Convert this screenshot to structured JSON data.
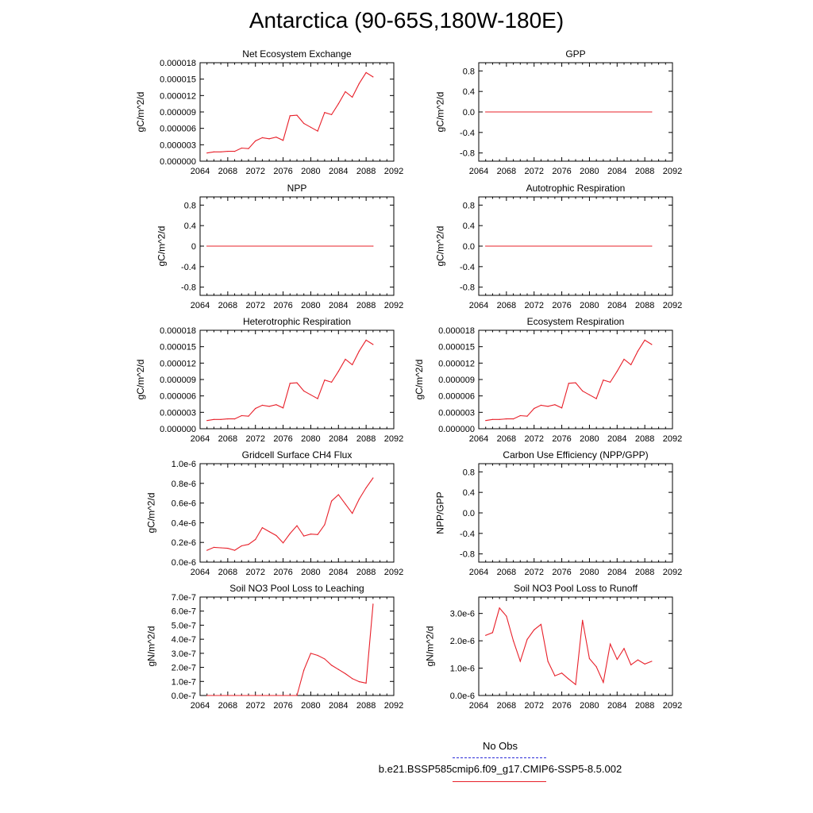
{
  "title": "Antarctica (90-65S,180W-180E)",
  "legend": {
    "obs_label": "No Obs",
    "obs_color": "#2b2bd8",
    "model_label": "b.e21.BSSP585cmip6.f09_g17.CMIP6-SSP5-8.5.002",
    "model_color": "#e8202a"
  },
  "chart_data": [
    {
      "type": "line",
      "title": "Net Ecosystem Exchange",
      "ylabel": "gC/m^2/d",
      "xlim": [
        2064,
        2092
      ],
      "ylim": [
        0,
        1.8e-05
      ],
      "xticks": [
        "2064",
        "2068",
        "2072",
        "2076",
        "2080",
        "2084",
        "2088",
        "2092"
      ],
      "yticks": [
        "0.000000",
        "0.000003",
        "0.000006",
        "0.000009",
        "0.000012",
        "0.000015",
        "0.000018"
      ],
      "x": [
        2065,
        2066,
        2067,
        2068,
        2069,
        2070,
        2071,
        2072,
        2073,
        2074,
        2075,
        2076,
        2077,
        2078,
        2079,
        2080,
        2081,
        2082,
        2083,
        2084,
        2085,
        2086,
        2087,
        2088,
        2089
      ],
      "values": [
        1.5e-06,
        1.7e-06,
        1.7e-06,
        1.8e-06,
        1.8e-06,
        2.4e-06,
        2.3e-06,
        3.7e-06,
        4.3e-06,
        4.1e-06,
        4.4e-06,
        3.8e-06,
        8.3e-06,
        8.4e-06,
        6.9e-06,
        6.2e-06,
        5.5e-06,
        8.9e-06,
        8.5e-06,
        1.05e-05,
        1.27e-05,
        1.17e-05,
        1.42e-05,
        1.62e-05,
        1.54e-05
      ]
    },
    {
      "type": "line",
      "title": "GPP",
      "ylabel": "gC/m^2/d",
      "xlim": [
        2064,
        2092
      ],
      "ylim": [
        -0.96,
        0.96
      ],
      "xticks": [
        "2064",
        "2068",
        "2072",
        "2076",
        "2080",
        "2084",
        "2088",
        "2092"
      ],
      "yticks": [
        "-0.8",
        "-0.4",
        "0.0",
        "0.4",
        "0.8"
      ],
      "x": [
        2065,
        2089
      ],
      "values": [
        0,
        0
      ]
    },
    {
      "type": "line",
      "title": "NPP",
      "ylabel": "gC/m^2/d",
      "xlim": [
        2064,
        2092
      ],
      "ylim": [
        -0.96,
        0.96
      ],
      "xticks": [
        "2064",
        "2068",
        "2072",
        "2076",
        "2080",
        "2084",
        "2088",
        "2092"
      ],
      "yticks": [
        "-0.8",
        "-0.4",
        "0",
        "0.4",
        "0.8"
      ],
      "x": [
        2065,
        2089
      ],
      "values": [
        0,
        0
      ]
    },
    {
      "type": "line",
      "title": "Autotrophic Respiration",
      "ylabel": "gC/m^2/d",
      "xlim": [
        2064,
        2092
      ],
      "ylim": [
        -0.96,
        0.96
      ],
      "xticks": [
        "2064",
        "2068",
        "2072",
        "2076",
        "2080",
        "2084",
        "2088",
        "2092"
      ],
      "yticks": [
        "-0.8",
        "-0.4",
        "0.0",
        "0.4",
        "0.8"
      ],
      "x": [
        2065,
        2089
      ],
      "values": [
        0,
        0
      ]
    },
    {
      "type": "line",
      "title": "Heterotrophic Respiration",
      "ylabel": "gC/m^2/d",
      "xlim": [
        2064,
        2092
      ],
      "ylim": [
        0,
        1.8e-05
      ],
      "xticks": [
        "2064",
        "2068",
        "2072",
        "2076",
        "2080",
        "2084",
        "2088",
        "2092"
      ],
      "yticks": [
        "0.000000",
        "0.000003",
        "0.000006",
        "0.000009",
        "0.000012",
        "0.000015",
        "0.000018"
      ],
      "x": [
        2065,
        2066,
        2067,
        2068,
        2069,
        2070,
        2071,
        2072,
        2073,
        2074,
        2075,
        2076,
        2077,
        2078,
        2079,
        2080,
        2081,
        2082,
        2083,
        2084,
        2085,
        2086,
        2087,
        2088,
        2089
      ],
      "values": [
        1.5e-06,
        1.7e-06,
        1.7e-06,
        1.8e-06,
        1.8e-06,
        2.4e-06,
        2.3e-06,
        3.7e-06,
        4.3e-06,
        4.1e-06,
        4.4e-06,
        3.8e-06,
        8.3e-06,
        8.4e-06,
        6.9e-06,
        6.2e-06,
        5.5e-06,
        8.9e-06,
        8.5e-06,
        1.05e-05,
        1.27e-05,
        1.17e-05,
        1.42e-05,
        1.62e-05,
        1.54e-05
      ]
    },
    {
      "type": "line",
      "title": "Ecosystem Respiration",
      "ylabel": "gC/m^2/d",
      "xlim": [
        2064,
        2092
      ],
      "ylim": [
        0,
        1.8e-05
      ],
      "xticks": [
        "2064",
        "2068",
        "2072",
        "2076",
        "2080",
        "2084",
        "2088",
        "2092"
      ],
      "yticks": [
        "0.000000",
        "0.000003",
        "0.000006",
        "0.000009",
        "0.000012",
        "0.000015",
        "0.000018"
      ],
      "x": [
        2065,
        2066,
        2067,
        2068,
        2069,
        2070,
        2071,
        2072,
        2073,
        2074,
        2075,
        2076,
        2077,
        2078,
        2079,
        2080,
        2081,
        2082,
        2083,
        2084,
        2085,
        2086,
        2087,
        2088,
        2089
      ],
      "values": [
        1.5e-06,
        1.7e-06,
        1.7e-06,
        1.8e-06,
        1.8e-06,
        2.4e-06,
        2.3e-06,
        3.7e-06,
        4.3e-06,
        4.1e-06,
        4.4e-06,
        3.8e-06,
        8.3e-06,
        8.4e-06,
        6.9e-06,
        6.2e-06,
        5.5e-06,
        8.9e-06,
        8.5e-06,
        1.05e-05,
        1.27e-05,
        1.17e-05,
        1.42e-05,
        1.62e-05,
        1.54e-05
      ]
    },
    {
      "type": "line",
      "title": "Gridcell Surface CH4 Flux",
      "ylabel": "gC/m^2/d",
      "xlim": [
        2064,
        2092
      ],
      "ylim": [
        0,
        1e-06
      ],
      "xticks": [
        "2064",
        "2068",
        "2072",
        "2076",
        "2080",
        "2084",
        "2088",
        "2092"
      ],
      "yticks": [
        "0.0e-6",
        "0.2e-6",
        "0.4e-6",
        "0.6e-6",
        "0.8e-6",
        "1.0e-6"
      ],
      "x": [
        2065,
        2066,
        2067,
        2068,
        2069,
        2070,
        2071,
        2072,
        2073,
        2074,
        2075,
        2076,
        2077,
        2078,
        2079,
        2080,
        2081,
        2082,
        2083,
        2084,
        2085,
        2086,
        2087,
        2088,
        2089
      ],
      "values": [
        1.2e-07,
        1.5e-07,
        1.45e-07,
        1.4e-07,
        1.2e-07,
        1.65e-07,
        1.8e-07,
        2.3e-07,
        3.5e-07,
        3.1e-07,
        2.7e-07,
        1.95e-07,
        2.9e-07,
        3.7e-07,
        2.65e-07,
        2.85e-07,
        2.8e-07,
        3.8e-07,
        6.2e-07,
        6.85e-07,
        5.9e-07,
        4.95e-07,
        6.4e-07,
        7.55e-07,
        8.55e-07
      ]
    },
    {
      "type": "line",
      "title": "Carbon Use Efficiency (NPP/GPP)",
      "ylabel": "NPP/GPP",
      "xlim": [
        2064,
        2092
      ],
      "ylim": [
        -0.96,
        0.96
      ],
      "xticks": [
        "2064",
        "2068",
        "2072",
        "2076",
        "2080",
        "2084",
        "2088",
        "2092"
      ],
      "yticks": [
        "-0.8",
        "-0.4",
        "0.0",
        "0.4",
        "0.8"
      ],
      "x": [],
      "values": []
    },
    {
      "type": "line",
      "title": "Soil NO3 Pool Loss to Leaching",
      "ylabel": "gN/m^2/d",
      "xlim": [
        2064,
        2092
      ],
      "ylim": [
        0,
        7e-07
      ],
      "xticks": [
        "2064",
        "2068",
        "2072",
        "2076",
        "2080",
        "2084",
        "2088",
        "2092"
      ],
      "yticks": [
        "0.0e-7",
        "1.0e-7",
        "2.0e-7",
        "3.0e-7",
        "4.0e-7",
        "5.0e-7",
        "6.0e-7",
        "7.0e-7"
      ],
      "x": [
        2065,
        2066,
        2067,
        2068,
        2069,
        2070,
        2071,
        2072,
        2073,
        2074,
        2075,
        2076,
        2077,
        2078,
        2079,
        2080,
        2081,
        2082,
        2083,
        2084,
        2085,
        2086,
        2087,
        2088,
        2089
      ],
      "values": [
        0,
        0,
        0,
        0,
        0,
        0,
        0,
        0,
        0,
        0,
        0,
        0,
        0,
        0,
        1.8e-07,
        3e-07,
        2.85e-07,
        2.6e-07,
        2.15e-07,
        1.85e-07,
        1.55e-07,
        1.2e-07,
        9.8e-08,
        8.8e-08,
        6.5e-07
      ]
    },
    {
      "type": "line",
      "title": "Soil NO3 Pool Loss to Runoff",
      "ylabel": "gN/m^2/d",
      "xlim": [
        2064,
        2092
      ],
      "ylim": [
        0,
        3.6e-06
      ],
      "xticks": [
        "2064",
        "2068",
        "2072",
        "2076",
        "2080",
        "2084",
        "2088",
        "2092"
      ],
      "yticks": [
        "0.0e-6",
        "1.0e-6",
        "2.0e-6",
        "3.0e-6"
      ],
      "x": [
        2065,
        2066,
        2067,
        2068,
        2069,
        2070,
        2071,
        2072,
        2073,
        2074,
        2075,
        2076,
        2077,
        2078,
        2079,
        2080,
        2081,
        2082,
        2083,
        2084,
        2085,
        2086,
        2087,
        2088,
        2089
      ],
      "values": [
        2.2e-06,
        2.3e-06,
        3.2e-06,
        2.9e-06,
        2e-06,
        1.25e-06,
        2.05e-06,
        2.4e-06,
        2.6e-06,
        1.25e-06,
        7.2e-07,
        8.2e-07,
        6e-07,
        4e-07,
        2.75e-06,
        1.35e-06,
        1.05e-06,
        4.8e-07,
        1.88e-06,
        1.32e-06,
        1.72e-06,
        1.12e-06,
        1.3e-06,
        1.15e-06,
        1.25e-06
      ]
    }
  ]
}
